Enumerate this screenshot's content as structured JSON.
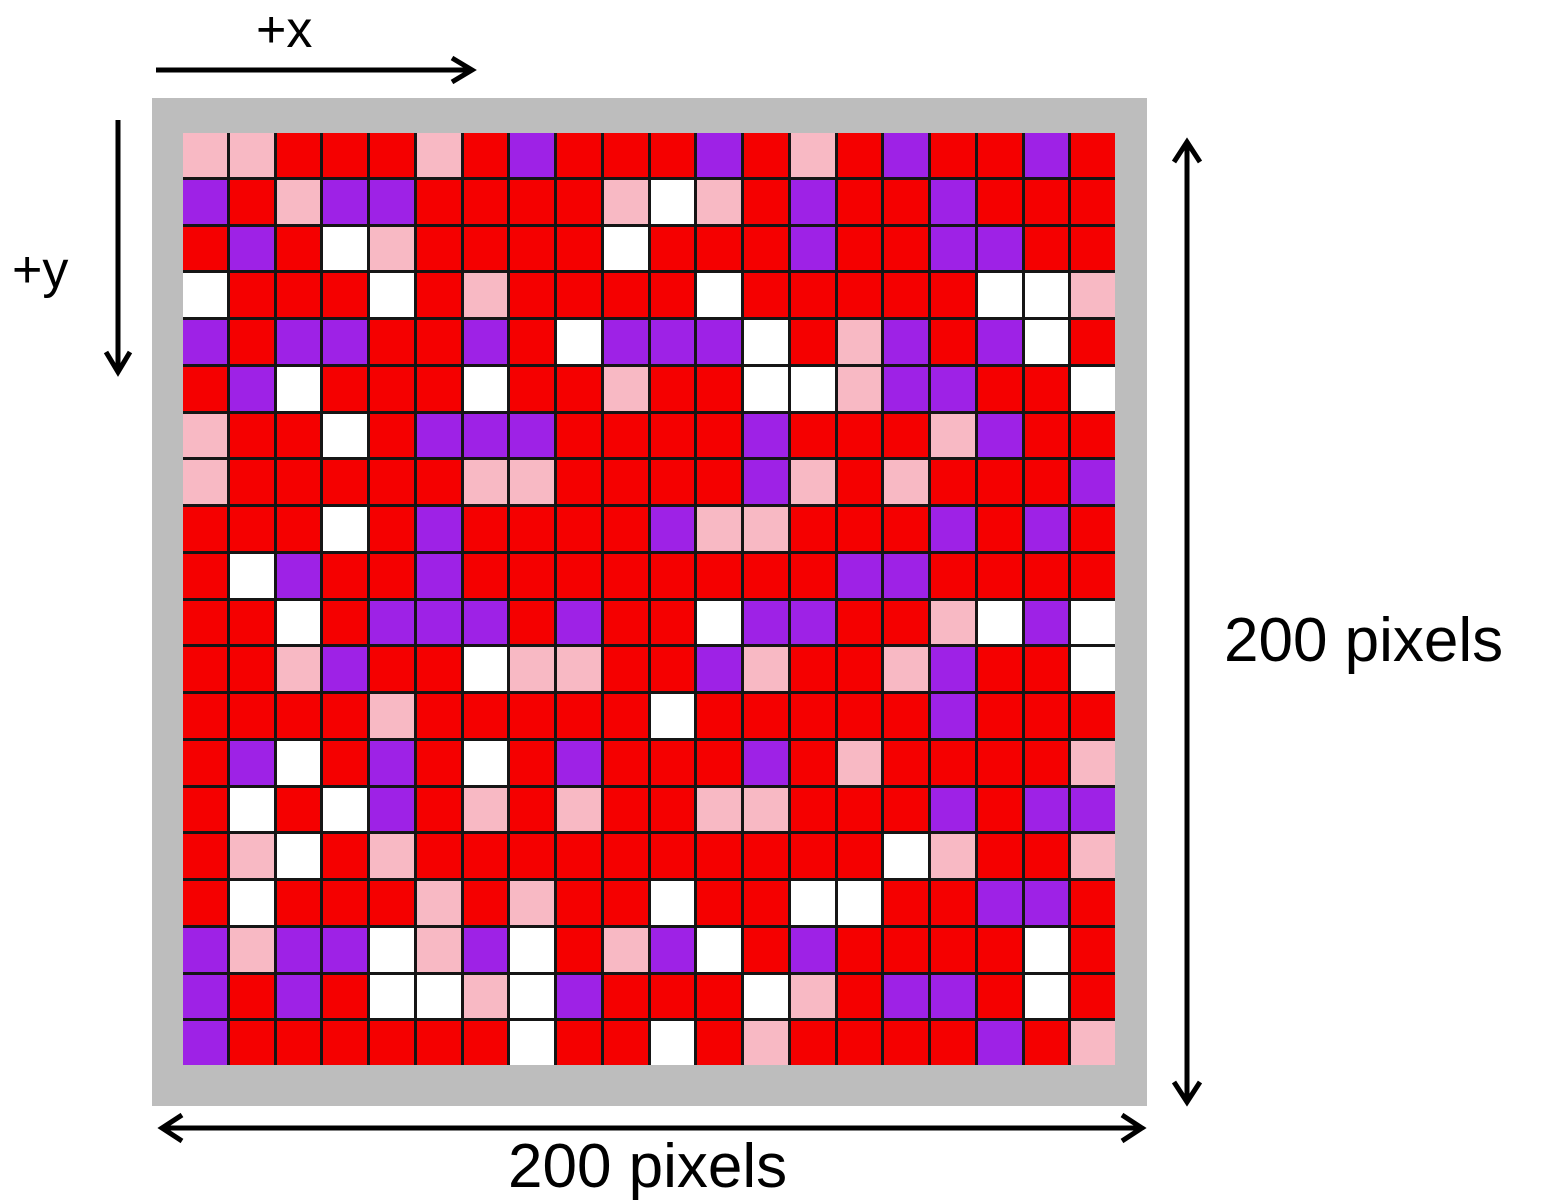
{
  "labels": {
    "x_axis": "+x",
    "y_axis": "+y",
    "height_dim": "200 pixels",
    "width_dim": "200 pixels"
  },
  "colors": {
    "R": "#f50000",
    "P": "#f8b9c4",
    "V": "#9e22e6",
    "W": "#ffffff",
    "frame": "#bdbdbd",
    "gridline": "#151515"
  },
  "grid": {
    "rows": [
      "PPRRRPRVRRRVRPRVRRVR",
      "VRPVVRRRRPWPRVRRVRRR",
      "RVRWPRRRRWRRRVRRVVRR",
      "WRRRWRPRRRRWRRRRRWWP",
      "VRVVRRVRWVVVWRPVRVWR",
      "RVWRRRWRRPRRWWPVVRRW",
      "PRRWRVVVRRRRVRRRPVRR",
      "PRRRRRPPRRRRVPRPRRRV",
      "RRRWRVRRRRVPPRRRVRVR",
      "RWVRRVRRRRRRRRVVRRRR",
      "RRWRVVVRVRRWVVRRPWVW",
      "RRPVRRWPPRRVPRRPVRRW",
      "RRRRPRRRRRWRRRRRVRRR",
      "RVWRVRWRVRRRVRPRRRRP",
      "RWRWVRPRPRRPPRRRVRVV",
      "RPWRPRRRRRRRRRRWPRRP",
      "RWRRRPRPRRWRRWWRRVVR",
      "VPVVWPVWRPVWRVRRRRWR",
      "VRVRWWPWVRRRWPRVVRWR",
      "VRRRRRRWRRWRPRRRRVRP"
    ]
  }
}
